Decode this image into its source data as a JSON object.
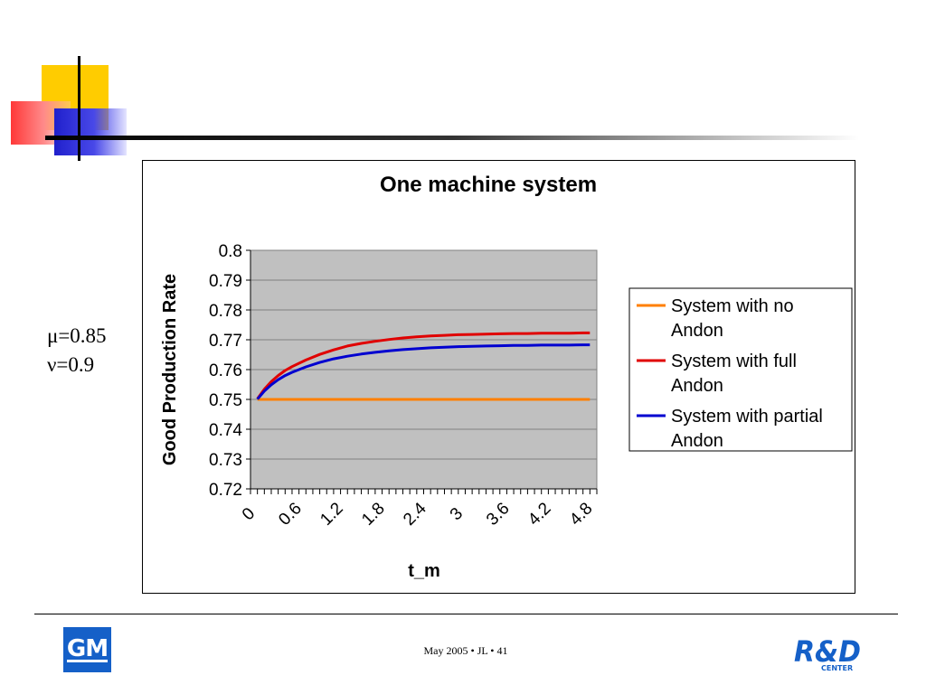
{
  "slide": {
    "params": [
      "μ=0.85",
      "ν=0.9"
    ],
    "footer": "May 2005 • JL • 41",
    "gm_logo_text": "GM",
    "rd_logo_main": "R&D",
    "rd_logo_sub": "CENTER"
  },
  "chart_data": {
    "type": "line",
    "title": "One machine system",
    "xlabel": "t_m",
    "ylabel": "Good Production Rate",
    "ylim": [
      0.72,
      0.8
    ],
    "yticks": [
      "0.8",
      "0.79",
      "0.78",
      "0.77",
      "0.76",
      "0.75",
      "0.74",
      "0.73",
      "0.72"
    ],
    "xtick_labels": [
      "0",
      "0.6",
      "1.2",
      "1.8",
      "2.4",
      "3",
      "3.6",
      "4.2",
      "4.8"
    ],
    "xtick_values": [
      0,
      0.6,
      1.2,
      1.8,
      2.4,
      3,
      3.6,
      4.2,
      4.8
    ],
    "xlim": [
      0,
      5.0
    ],
    "grid": true,
    "legend_position": "right",
    "x": [
      0.1,
      0.2,
      0.3,
      0.4,
      0.5,
      0.6,
      0.8,
      1.0,
      1.2,
      1.4,
      1.6,
      1.8,
      2.0,
      2.2,
      2.4,
      2.6,
      2.8,
      3.0,
      3.2,
      3.4,
      3.6,
      3.8,
      4.0,
      4.2,
      4.4,
      4.6,
      4.8,
      4.9
    ],
    "series": [
      {
        "name": "System with no Andon",
        "color": "#ff7f00",
        "values": [
          0.75,
          0.75,
          0.75,
          0.75,
          0.75,
          0.75,
          0.75,
          0.75,
          0.75,
          0.75,
          0.75,
          0.75,
          0.75,
          0.75,
          0.75,
          0.75,
          0.75,
          0.75,
          0.75,
          0.75,
          0.75,
          0.75,
          0.75,
          0.75,
          0.75,
          0.75,
          0.75,
          0.75
        ]
      },
      {
        "name": "System with full Andon",
        "color": "#e00000",
        "values": [
          0.7502,
          0.7534,
          0.756,
          0.758,
          0.7597,
          0.761,
          0.7632,
          0.7651,
          0.7666,
          0.7679,
          0.7688,
          0.7695,
          0.7701,
          0.7706,
          0.771,
          0.7713,
          0.7715,
          0.7717,
          0.7718,
          0.7719,
          0.772,
          0.7721,
          0.7721,
          0.7722,
          0.7722,
          0.7722,
          0.7723,
          0.7723
        ]
      },
      {
        "name": "System with partial Andon",
        "color": "#0000d0",
        "values": [
          0.7501,
          0.7528,
          0.7549,
          0.7566,
          0.758,
          0.7591,
          0.7609,
          0.7624,
          0.7636,
          0.7645,
          0.7652,
          0.7658,
          0.7663,
          0.7667,
          0.767,
          0.7673,
          0.7675,
          0.7677,
          0.7678,
          0.7679,
          0.768,
          0.7681,
          0.7681,
          0.7682,
          0.7682,
          0.7682,
          0.7683,
          0.7683
        ]
      }
    ]
  }
}
